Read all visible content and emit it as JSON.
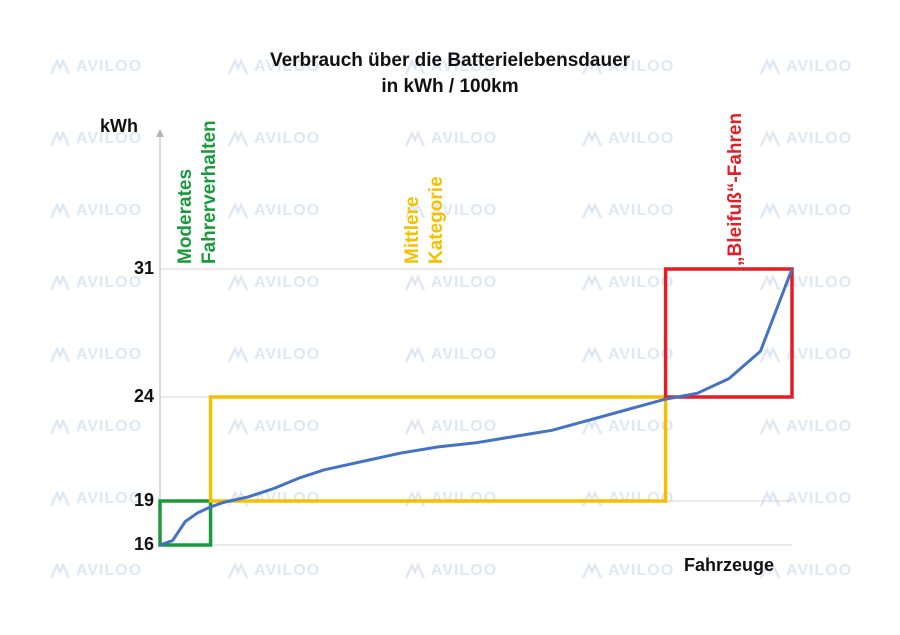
{
  "watermark": {
    "text": "AVILOO",
    "color": "#dfe8f2"
  },
  "chart_data": {
    "type": "line",
    "title": "Verbrauch über die Batterielebensdauer",
    "subtitle": "in kWh / 100km",
    "ylabel": "kWh",
    "xlabel": "Fahrzeuge",
    "ylim": [
      16,
      33
    ],
    "yticks": [
      "16",
      "19",
      "24",
      "31"
    ],
    "y_gridlines": [
      19,
      24,
      31
    ],
    "x": [
      0,
      2,
      4,
      6,
      8,
      10,
      14,
      18,
      22,
      26,
      32,
      38,
      44,
      50,
      56,
      62,
      68,
      74,
      80,
      85,
      90,
      95,
      100
    ],
    "y": [
      16.0,
      16.3,
      17.6,
      18.2,
      18.6,
      18.9,
      19.2,
      19.6,
      20.1,
      20.5,
      20.9,
      21.3,
      21.6,
      21.8,
      22.1,
      22.4,
      22.9,
      23.4,
      23.9,
      24.2,
      25.0,
      26.5,
      31.0
    ],
    "line_color": "#4472c4",
    "categories": [
      {
        "label": "Moderates\nFahrerverhalten",
        "color": "#1a9a3c",
        "x_range": [
          0,
          8
        ],
        "y_range": [
          16,
          19
        ]
      },
      {
        "label": "Mittlere\nKategorie",
        "color": "#f5c000",
        "x_range": [
          8,
          80
        ],
        "y_range": [
          19,
          24
        ]
      },
      {
        "label": "„Bleifuß“-Fahren",
        "color": "#e31e24",
        "x_range": [
          80,
          100
        ],
        "y_range": [
          24,
          31
        ]
      }
    ]
  }
}
